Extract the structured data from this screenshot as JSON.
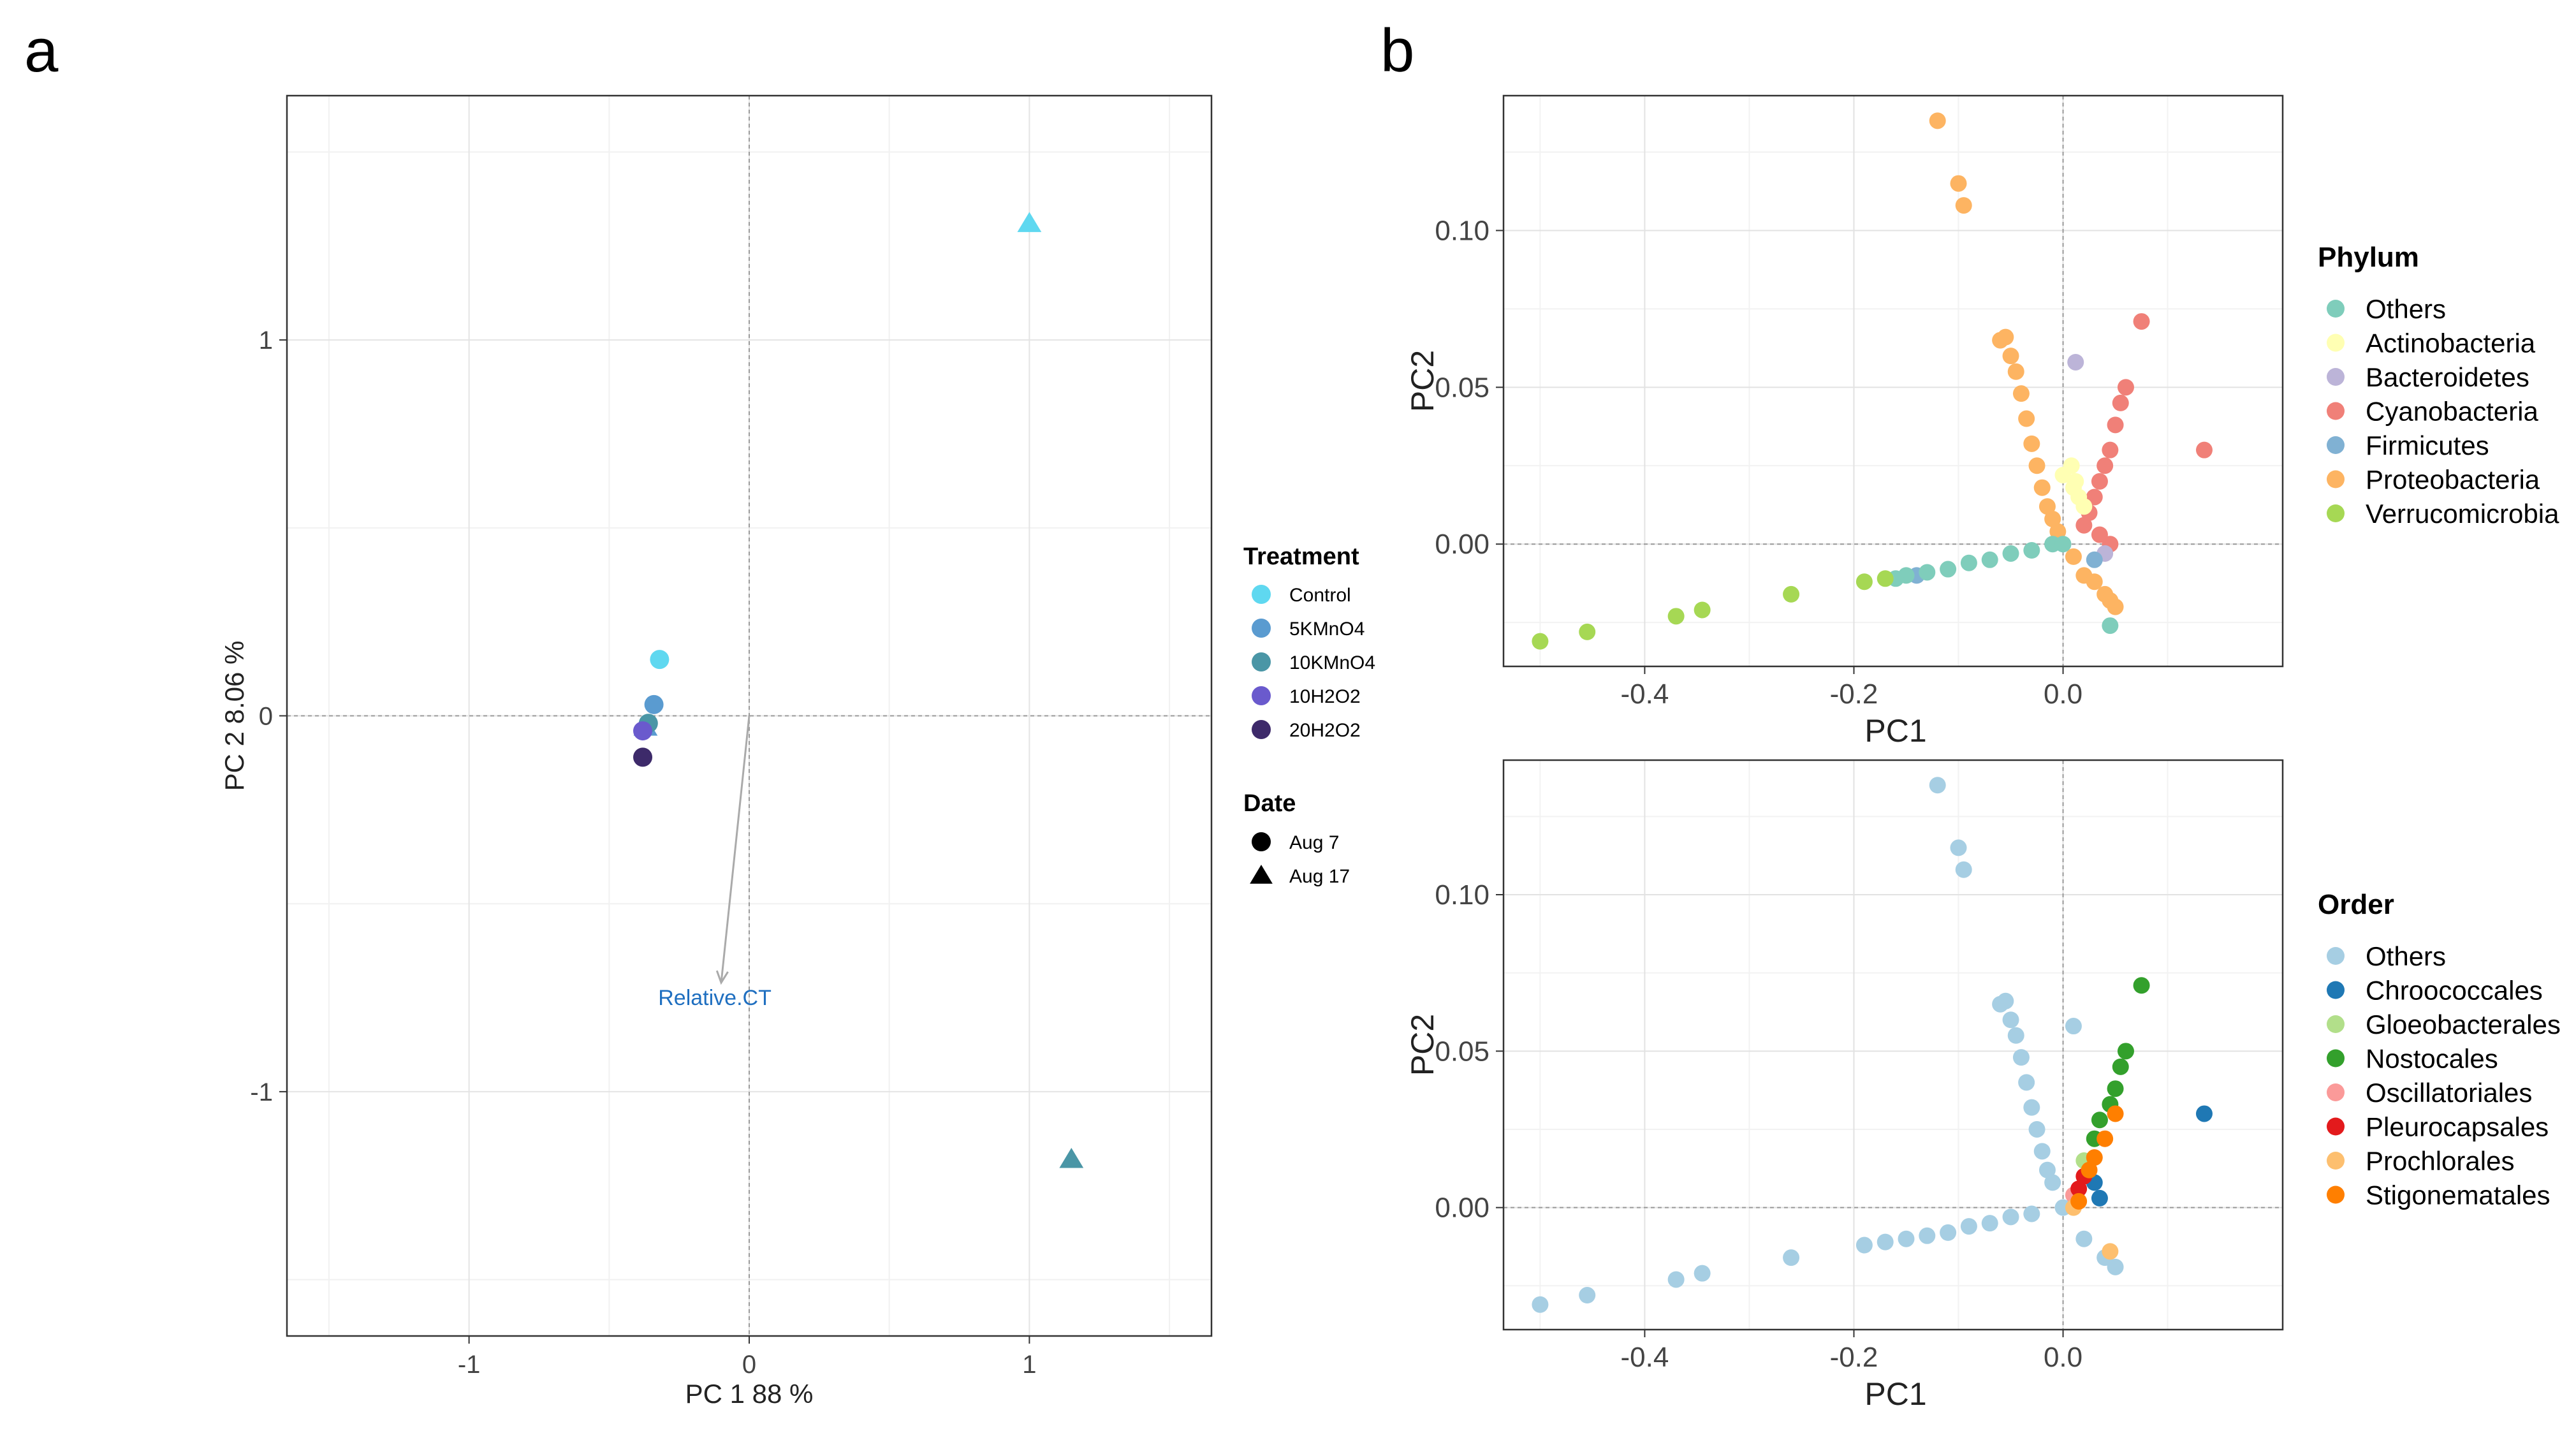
{
  "panels": {
    "a_label": "a",
    "b_label": "b"
  },
  "chart_data": [
    {
      "id": "a",
      "type": "scatter",
      "xlabel": "PC 1  88 %",
      "ylabel": "PC 2  8.06 %",
      "xlim": [
        -1.65,
        1.65
      ],
      "ylim": [
        -1.65,
        1.65
      ],
      "xticks": [
        -1,
        0,
        1
      ],
      "yticks": [
        -1,
        0,
        1
      ],
      "grid": true,
      "zero_lines": true,
      "series": [
        {
          "name": "Control",
          "color": "#5fd8f0",
          "points": [
            {
              "x": -0.32,
              "y": 0.15,
              "shape": "circle"
            },
            {
              "x": 1.0,
              "y": 1.31,
              "shape": "triangle"
            }
          ]
        },
        {
          "name": "5KMnO4",
          "color": "#5a9bd0",
          "points": [
            {
              "x": -0.34,
              "y": 0.03,
              "shape": "circle"
            },
            {
              "x": -0.37,
              "y": -0.03,
              "shape": "triangle"
            }
          ]
        },
        {
          "name": "10KMnO4",
          "color": "#4a96a6",
          "points": [
            {
              "x": -0.36,
              "y": -0.02,
              "shape": "circle"
            },
            {
              "x": 1.15,
              "y": -1.18,
              "shape": "triangle"
            }
          ]
        },
        {
          "name": "10H2O2",
          "color": "#6a5acd",
          "points": [
            {
              "x": -0.38,
              "y": -0.04,
              "shape": "circle"
            }
          ]
        },
        {
          "name": "20H2O2",
          "color": "#3d2a6a",
          "points": [
            {
              "x": -0.38,
              "y": -0.11,
              "shape": "circle"
            }
          ]
        }
      ],
      "arrow": {
        "label": "Relative.CT",
        "x0": 0,
        "y0": 0,
        "x1": -0.1,
        "y1": -0.71,
        "color": "#aaaaaa"
      },
      "legend": {
        "position": "right",
        "treatment_title": "Treatment",
        "treatment_items": [
          {
            "label": "Control",
            "color": "#5fd8f0"
          },
          {
            "label": "5KMnO4",
            "color": "#5a9bd0"
          },
          {
            "label": "10KMnO4",
            "color": "#4a96a6"
          },
          {
            "label": "10H2O2",
            "color": "#6a5acd"
          },
          {
            "label": "20H2O2",
            "color": "#3d2a6a"
          }
        ],
        "date_title": "Date",
        "date_items": [
          {
            "label": "Aug 7",
            "shape": "circle"
          },
          {
            "label": "Aug 17",
            "shape": "triangle"
          }
        ]
      }
    },
    {
      "id": "b_top",
      "type": "scatter",
      "xlabel": "PC1",
      "ylabel": "PC2",
      "xlim": [
        -0.535,
        0.21
      ],
      "ylim": [
        -0.039,
        0.143
      ],
      "xticks": [
        -0.4,
        -0.2,
        0.0
      ],
      "xtick_labels": [
        "-0.4",
        "-0.2",
        "0.0"
      ],
      "yticks": [
        0.0,
        0.05,
        0.1
      ],
      "ytick_labels": [
        "0.00",
        "0.05",
        "0.10"
      ],
      "grid": true,
      "zero_lines": true,
      "legend": {
        "position": "right",
        "title": "Phylum",
        "items": [
          {
            "label": "Others",
            "color": "#7fcdbb"
          },
          {
            "label": "Actinobacteria",
            "color": "#ffffb3"
          },
          {
            "label": "Bacteroidetes",
            "color": "#bcb4d8"
          },
          {
            "label": "Cyanobacteria",
            "color": "#f08078"
          },
          {
            "label": "Firmicutes",
            "color": "#80b1d3"
          },
          {
            "label": "Proteobacteria",
            "color": "#fdb462"
          },
          {
            "label": "Verrucomicrobia",
            "color": "#a6d854"
          }
        ]
      },
      "groups": [
        {
          "name": "Proteobacteria",
          "color": "#fdb462",
          "points": [
            [
              -0.12,
              0.135
            ],
            [
              -0.1,
              0.115
            ],
            [
              -0.095,
              0.108
            ],
            [
              -0.06,
              0.065
            ],
            [
              -0.055,
              0.066
            ],
            [
              -0.05,
              0.06
            ],
            [
              -0.045,
              0.055
            ],
            [
              -0.04,
              0.048
            ],
            [
              -0.035,
              0.04
            ],
            [
              -0.03,
              0.032
            ],
            [
              -0.025,
              0.025
            ],
            [
              -0.02,
              0.018
            ],
            [
              -0.015,
              0.012
            ],
            [
              -0.01,
              0.008
            ],
            [
              -0.005,
              0.004
            ],
            [
              0.01,
              -0.004
            ],
            [
              0.02,
              -0.01
            ],
            [
              0.03,
              -0.012
            ],
            [
              0.04,
              -0.016
            ],
            [
              0.045,
              -0.018
            ],
            [
              0.05,
              -0.02
            ]
          ]
        },
        {
          "name": "Cyanobacteria",
          "color": "#f08078",
          "points": [
            [
              0.075,
              0.071
            ],
            [
              0.135,
              0.03
            ],
            [
              0.06,
              0.05
            ],
            [
              0.055,
              0.045
            ],
            [
              0.05,
              0.038
            ],
            [
              0.045,
              0.03
            ],
            [
              0.04,
              0.025
            ],
            [
              0.035,
              0.02
            ],
            [
              0.03,
              0.015
            ],
            [
              0.025,
              0.01
            ],
            [
              0.02,
              0.006
            ],
            [
              0.035,
              0.003
            ],
            [
              0.045,
              0.0
            ]
          ]
        },
        {
          "name": "Actinobacteria",
          "color": "#ffffb3",
          "points": [
            [
              0.0,
              0.022
            ],
            [
              0.01,
              0.018
            ],
            [
              0.015,
              0.015
            ],
            [
              0.02,
              0.012
            ],
            [
              0.012,
              0.02
            ],
            [
              0.008,
              0.025
            ]
          ]
        },
        {
          "name": "Bacteroidetes",
          "color": "#bcb4d8",
          "points": [
            [
              0.012,
              0.058
            ],
            [
              0.04,
              -0.003
            ]
          ]
        },
        {
          "name": "Firmicutes",
          "color": "#80b1d3",
          "points": [
            [
              -0.14,
              -0.01
            ],
            [
              0.03,
              -0.005
            ]
          ]
        },
        {
          "name": "Others",
          "color": "#7fcdbb",
          "points": [
            [
              -0.15,
              -0.01
            ],
            [
              -0.13,
              -0.009
            ],
            [
              -0.11,
              -0.008
            ],
            [
              -0.09,
              -0.006
            ],
            [
              -0.07,
              -0.005
            ],
            [
              -0.05,
              -0.003
            ],
            [
              -0.03,
              -0.002
            ],
            [
              -0.01,
              0.0
            ],
            [
              0.0,
              0.0
            ],
            [
              0.045,
              -0.026
            ],
            [
              -0.16,
              -0.011
            ]
          ]
        },
        {
          "name": "Verrucomicrobia",
          "color": "#a6d854",
          "points": [
            [
              -0.5,
              -0.031
            ],
            [
              -0.455,
              -0.028
            ],
            [
              -0.37,
              -0.023
            ],
            [
              -0.345,
              -0.021
            ],
            [
              -0.26,
              -0.016
            ],
            [
              -0.19,
              -0.012
            ],
            [
              -0.17,
              -0.011
            ]
          ]
        }
      ]
    },
    {
      "id": "b_bottom",
      "type": "scatter",
      "xlabel": "PC1",
      "ylabel": "PC2",
      "xlim": [
        -0.535,
        0.21
      ],
      "ylim": [
        -0.039,
        0.143
      ],
      "xticks": [
        -0.4,
        -0.2,
        0.0
      ],
      "xtick_labels": [
        "-0.4",
        "-0.2",
        "0.0"
      ],
      "yticks": [
        0.0,
        0.05,
        0.1
      ],
      "ytick_labels": [
        "0.00",
        "0.05",
        "0.10"
      ],
      "grid": true,
      "zero_lines": true,
      "legend": {
        "position": "right",
        "title": "Order",
        "items": [
          {
            "label": "Others",
            "color": "#a6cee3"
          },
          {
            "label": "Chroococcales",
            "color": "#1f78b4"
          },
          {
            "label": "Gloeobacterales",
            "color": "#b2df8a"
          },
          {
            "label": "Nostocales",
            "color": "#33a02c"
          },
          {
            "label": "Oscillatoriales",
            "color": "#fb9a99"
          },
          {
            "label": "Pleurocapsales",
            "color": "#e31a1c"
          },
          {
            "label": "Prochlorales",
            "color": "#fdbf6f"
          },
          {
            "label": "Stigonematales",
            "color": "#ff7f00"
          }
        ]
      },
      "groups": [
        {
          "name": "Others",
          "color": "#a6cee3",
          "points": [
            [
              -0.12,
              0.135
            ],
            [
              -0.1,
              0.115
            ],
            [
              -0.095,
              0.108
            ],
            [
              -0.06,
              0.065
            ],
            [
              -0.055,
              0.066
            ],
            [
              -0.05,
              0.06
            ],
            [
              -0.045,
              0.055
            ],
            [
              -0.04,
              0.048
            ],
            [
              -0.035,
              0.04
            ],
            [
              -0.03,
              0.032
            ],
            [
              -0.025,
              0.025
            ],
            [
              -0.02,
              0.018
            ],
            [
              -0.015,
              0.012
            ],
            [
              -0.01,
              0.008
            ],
            [
              0.01,
              0.058
            ],
            [
              -0.5,
              -0.031
            ],
            [
              -0.455,
              -0.028
            ],
            [
              -0.37,
              -0.023
            ],
            [
              -0.345,
              -0.021
            ],
            [
              -0.26,
              -0.016
            ],
            [
              -0.19,
              -0.012
            ],
            [
              -0.17,
              -0.011
            ],
            [
              -0.15,
              -0.01
            ],
            [
              -0.13,
              -0.009
            ],
            [
              -0.11,
              -0.008
            ],
            [
              -0.09,
              -0.006
            ],
            [
              -0.07,
              -0.005
            ],
            [
              -0.05,
              -0.003
            ],
            [
              -0.03,
              -0.002
            ],
            [
              0.0,
              0.0
            ],
            [
              0.02,
              -0.01
            ],
            [
              0.04,
              -0.016
            ],
            [
              0.05,
              -0.019
            ]
          ]
        },
        {
          "name": "Chroococcales",
          "color": "#1f78b4",
          "points": [
            [
              0.135,
              0.03
            ],
            [
              0.03,
              0.008
            ],
            [
              0.035,
              0.003
            ]
          ]
        },
        {
          "name": "Gloeobacterales",
          "color": "#b2df8a",
          "points": [
            [
              0.02,
              0.015
            ]
          ]
        },
        {
          "name": "Nostocales",
          "color": "#33a02c",
          "points": [
            [
              0.075,
              0.071
            ],
            [
              0.06,
              0.05
            ],
            [
              0.055,
              0.045
            ],
            [
              0.05,
              0.038
            ],
            [
              0.045,
              0.033
            ],
            [
              0.035,
              0.028
            ],
            [
              0.03,
              0.022
            ]
          ]
        },
        {
          "name": "Oscillatoriales",
          "color": "#fb9a99",
          "points": [
            [
              0.01,
              0.004
            ]
          ]
        },
        {
          "name": "Pleurocapsales",
          "color": "#e31a1c",
          "points": [
            [
              0.02,
              0.01
            ],
            [
              0.015,
              0.006
            ]
          ]
        },
        {
          "name": "Prochlorales",
          "color": "#fdbf6f",
          "points": [
            [
              0.045,
              -0.014
            ],
            [
              0.01,
              0.0
            ]
          ]
        },
        {
          "name": "Stigonematales",
          "color": "#ff7f00",
          "points": [
            [
              0.05,
              0.03
            ],
            [
              0.04,
              0.022
            ],
            [
              0.03,
              0.016
            ],
            [
              0.025,
              0.012
            ],
            [
              0.015,
              0.002
            ]
          ]
        }
      ]
    }
  ]
}
